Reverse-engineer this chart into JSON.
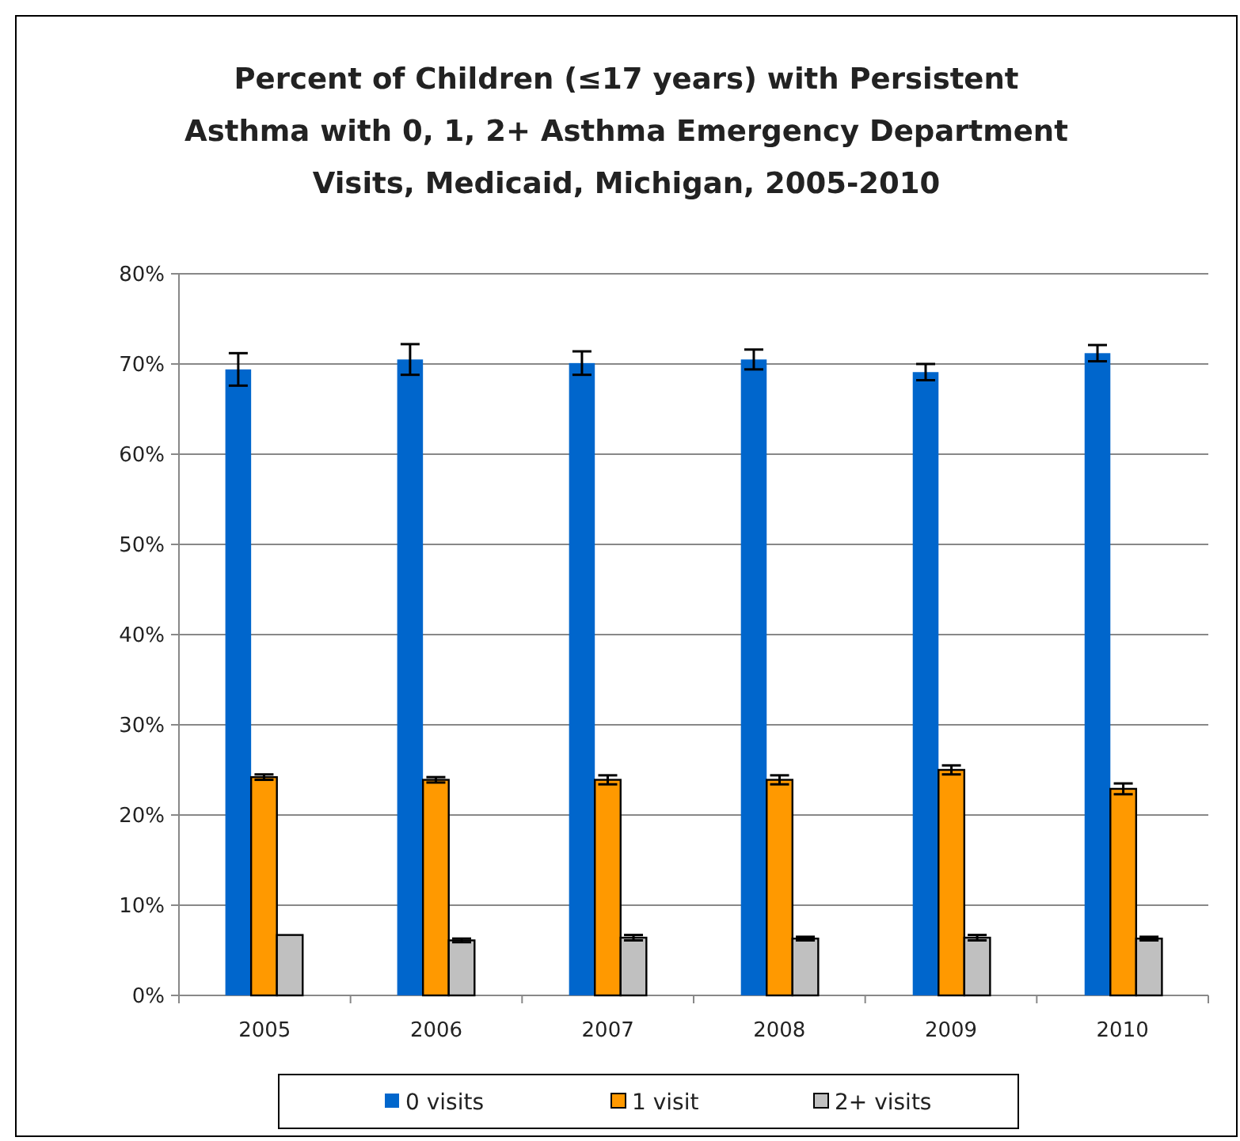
{
  "chart_data": {
    "type": "bar",
    "title": "Percent of Children (≤17 years) with Persistent Asthma with 0, 1, 2+ Asthma Emergency Department Visits, Medicaid, Michigan, 2005-2010",
    "categories": [
      "2005",
      "2006",
      "2007",
      "2008",
      "2009",
      "2010"
    ],
    "series": [
      {
        "name": "0 visits",
        "color": "#0066cc",
        "values": [
          69.4,
          70.5,
          70.1,
          70.5,
          69.1,
          71.2
        ],
        "errors": [
          1.8,
          1.7,
          1.3,
          1.1,
          0.9,
          0.9
        ]
      },
      {
        "name": "1 visit",
        "color": "#ff9900",
        "values": [
          24.2,
          23.9,
          23.9,
          23.9,
          25.0,
          22.9
        ],
        "errors": [
          0.3,
          0.3,
          0.5,
          0.5,
          0.5,
          0.6
        ]
      },
      {
        "name": "2+ visits",
        "color": "#c0c0c0",
        "values": [
          6.7,
          6.1,
          6.4,
          6.3,
          6.4,
          6.3
        ],
        "errors": [
          null,
          0.2,
          0.3,
          0.2,
          0.3,
          0.2
        ]
      }
    ],
    "ylim": [
      0,
      80
    ],
    "yticks": [
      {
        "value": 0,
        "label": "0%"
      },
      {
        "value": 10,
        "label": "10%"
      },
      {
        "value": 20,
        "label": "20%"
      },
      {
        "value": 30,
        "label": "30%"
      },
      {
        "value": 40,
        "label": "40%"
      },
      {
        "value": 50,
        "label": "50%"
      },
      {
        "value": 60,
        "label": "60%"
      },
      {
        "value": 70,
        "label": "70%"
      },
      {
        "value": 80,
        "label": "80%"
      }
    ],
    "grid": "y",
    "legend": "bottom"
  }
}
